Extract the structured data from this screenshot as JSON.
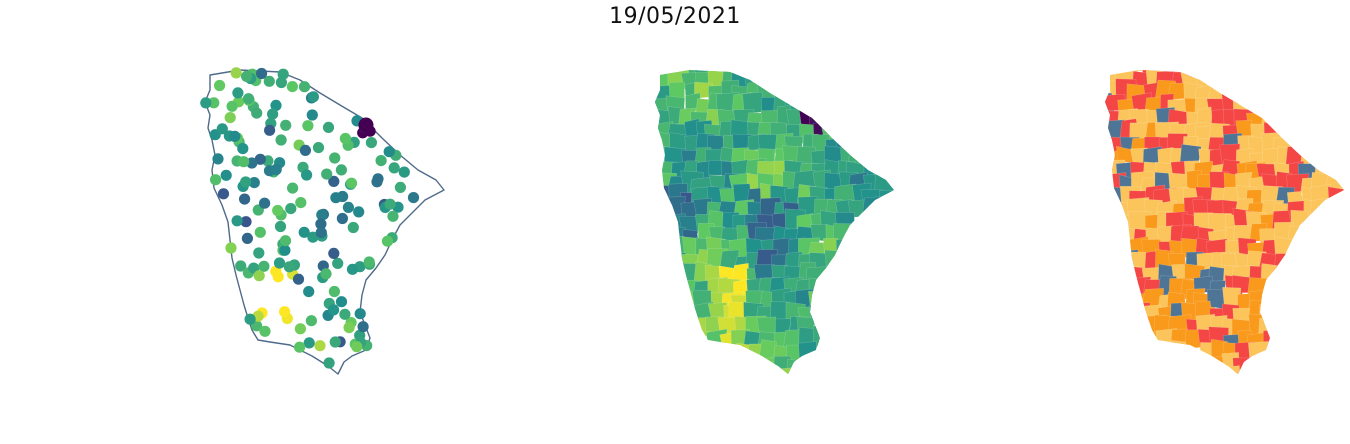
{
  "title": "19/05/2021",
  "colors": {
    "outline": "#4f6a8a",
    "viridis": [
      "#440154",
      "#3b528b",
      "#21918c",
      "#5ec962",
      "#fde725"
    ],
    "categories": {
      "low": "#4f7596",
      "medium": "#fbc55c",
      "high": "#fa9a1c",
      "very_high": "#f54646"
    }
  },
  "panels": [
    {
      "name": "points",
      "type": "point-map"
    },
    {
      "name": "choropleth",
      "type": "choropleth-continuous"
    },
    {
      "name": "classes",
      "type": "choropleth-categorical"
    }
  ]
}
